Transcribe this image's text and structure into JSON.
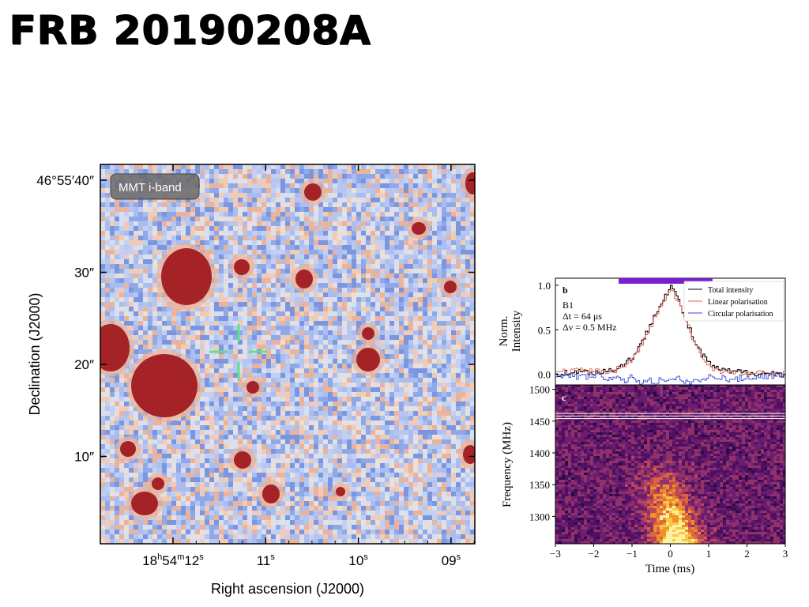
{
  "slide": {
    "title": "FRB 20190208A"
  },
  "sky_image": {
    "label": "MMT i-band",
    "dec_ticks": [
      {
        "value": "46°55′40″",
        "pos": 40
      },
      {
        "value": "30″",
        "pos": 30
      },
      {
        "value": "20″",
        "pos": 20
      },
      {
        "value": "10″",
        "pos": 10
      }
    ],
    "ra_ticks": [
      {
        "h": "18",
        "m": "54",
        "s": "12",
        "pos": 12
      },
      {
        "h": "",
        "m": "",
        "s": "11",
        "pos": 11
      },
      {
        "h": "",
        "m": "",
        "s": "10",
        "pos": 10
      },
      {
        "h": "",
        "m": "",
        "s": "09",
        "pos": 9
      }
    ],
    "xlabel": "Right ascension (J2000)",
    "ylabel": "Declination (J2000)",
    "crosshair_color": "#5fe08a",
    "source_color": "#a52226"
  },
  "chart_data": [
    {
      "type": "line",
      "panel_label": "b",
      "annotation": [
        "B1",
        "Δt = 64 μs",
        "Δν = 0.5 MHz"
      ],
      "ylabel": "Norm. Intensity",
      "yticks": [
        0.0,
        0.5,
        1.0
      ],
      "ylim": [
        -0.12,
        1.08
      ],
      "xlim": [
        -3,
        3
      ],
      "legend_position": "top-right",
      "series": [
        {
          "name": "Total intensity",
          "color": "#000000",
          "x": [
            -3,
            -2.5,
            -2,
            -1.5,
            -1.2,
            -1,
            -0.8,
            -0.6,
            -0.4,
            -0.2,
            0,
            0.2,
            0.4,
            0.6,
            0.8,
            1,
            1.2,
            1.5,
            2,
            2.5,
            3
          ],
          "values": [
            0,
            0.03,
            0.02,
            0.05,
            0.12,
            0.2,
            0.32,
            0.5,
            0.7,
            0.85,
            1.0,
            0.82,
            0.6,
            0.38,
            0.22,
            0.12,
            0.06,
            0.03,
            0.02,
            0.01,
            0
          ]
        },
        {
          "name": "Linear polarisation",
          "color": "#e06050",
          "x": [
            -3,
            -2.5,
            -2,
            -1.5,
            -1.2,
            -1,
            -0.8,
            -0.6,
            -0.4,
            -0.2,
            0,
            0.2,
            0.4,
            0.6,
            0.8,
            1,
            1.2,
            1.5,
            2,
            2.5,
            3
          ],
          "values": [
            0.02,
            0.04,
            0.03,
            0.04,
            0.1,
            0.18,
            0.3,
            0.47,
            0.66,
            0.82,
            0.95,
            0.8,
            0.58,
            0.36,
            0.2,
            0.1,
            0.05,
            0.02,
            0.01,
            0.01,
            0.01
          ]
        },
        {
          "name": "Circular polarisation",
          "color": "#3a4ad8",
          "x": [
            -3,
            -2.5,
            -2,
            -1.5,
            -1.2,
            -1,
            -0.8,
            -0.6,
            -0.4,
            -0.2,
            0,
            0.2,
            0.4,
            0.6,
            0.8,
            1,
            1.2,
            1.5,
            2,
            2.5,
            3
          ],
          "values": [
            0,
            -0.03,
            -0.02,
            -0.05,
            -0.07,
            -0.03,
            -0.09,
            -0.06,
            -0.1,
            -0.04,
            -0.08,
            -0.05,
            -0.1,
            -0.06,
            -0.08,
            -0.03,
            -0.02,
            -0.06,
            -0.04,
            -0.02,
            0
          ]
        }
      ],
      "bar_marker_color": "#7a1fd0"
    },
    {
      "type": "heatmap",
      "panel_label": "c",
      "xlabel": "Time (ms)",
      "ylabel": "Frequency (MHz)",
      "xticks": [
        -3,
        -2,
        -1,
        0,
        1,
        2,
        3
      ],
      "yticks": [
        1300,
        1350,
        1400,
        1450,
        1500
      ],
      "xlim": [
        -3,
        3
      ],
      "ylim": [
        1257,
        1507
      ],
      "masked_channel_mhz": [
        1462,
        1458,
        1454
      ],
      "colormap": "inferno"
    }
  ]
}
